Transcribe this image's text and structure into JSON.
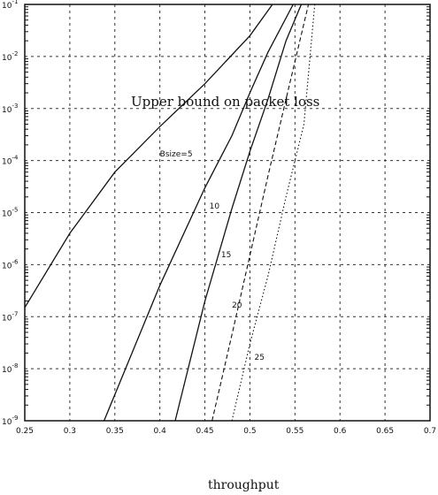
{
  "chart_data": {
    "type": "line",
    "title": "Upper bound on packet loss",
    "xlabel": "throughput",
    "ylabel": "",
    "xlim": [
      0.25,
      0.7
    ],
    "ylim": [
      1e-09,
      0.1
    ],
    "yscale": "log",
    "grid": true,
    "xticks": [
      "0.25",
      "0.3",
      "0.35",
      "0.4",
      "0.45",
      "0.5",
      "0.55",
      "0.6",
      "0.65",
      "0.7"
    ],
    "ytick_exponents": [
      "-9",
      "-8",
      "-7",
      "-6",
      "-5",
      "-4",
      "-3",
      "-2",
      "-1"
    ],
    "series": [
      {
        "name": "Bsize=5",
        "style": "solid",
        "x": [
          0.25,
          0.3,
          0.35,
          0.4,
          0.45,
          0.5,
          0.525
        ],
        "y": [
          1.5e-07,
          4e-06,
          6e-05,
          0.00045,
          0.003,
          0.025,
          0.1
        ]
      },
      {
        "name": "10",
        "style": "solid",
        "x": [
          0.338,
          0.4,
          0.45,
          0.48,
          0.5,
          0.52,
          0.548
        ],
        "y": [
          1e-09,
          4e-07,
          3e-05,
          0.0003,
          0.002,
          0.012,
          0.1
        ]
      },
      {
        "name": "15",
        "style": "solid",
        "x": [
          0.417,
          0.45,
          0.48,
          0.5,
          0.52,
          0.54,
          0.557
        ],
        "y": [
          1e-09,
          2e-07,
          1.2e-05,
          0.00015,
          0.0015,
          0.02,
          0.1
        ]
      },
      {
        "name": "20",
        "style": "dashed",
        "x": [
          0.458,
          0.48,
          0.5,
          0.52,
          0.54,
          0.565
        ],
        "y": [
          1e-09,
          4.5e-08,
          1.5e-06,
          5e-05,
          0.0015,
          0.1
        ]
      },
      {
        "name": "25",
        "style": "dotted",
        "x": [
          0.48,
          0.5,
          0.52,
          0.54,
          0.56,
          0.572
        ],
        "y": [
          1e-09,
          3e-08,
          6e-07,
          2e-05,
          0.0005,
          0.1
        ]
      }
    ]
  }
}
